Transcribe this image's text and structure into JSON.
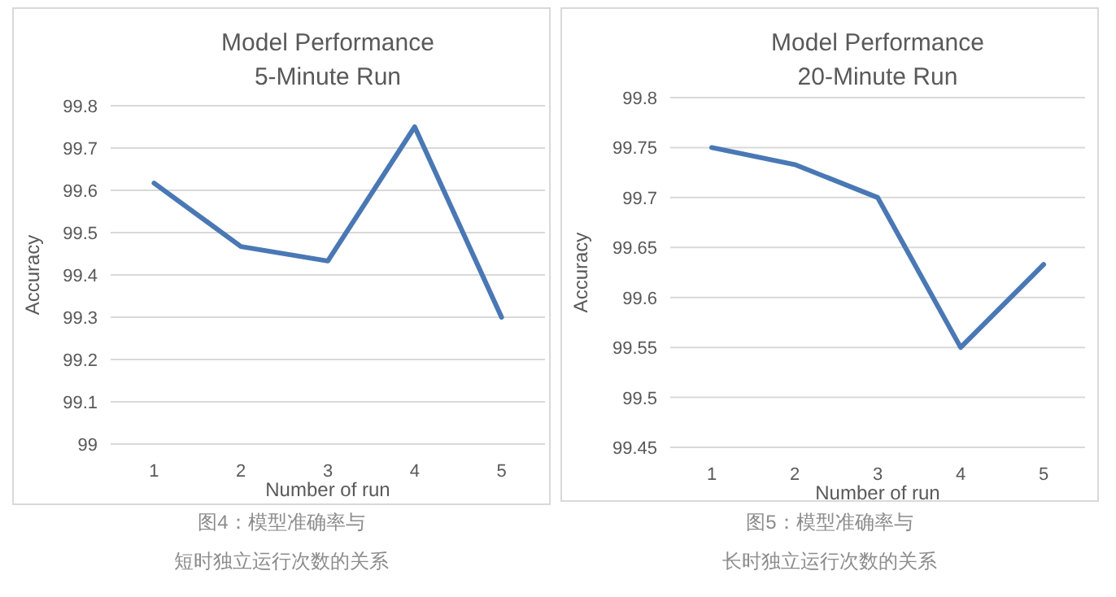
{
  "chart_data": [
    {
      "type": "line",
      "title": "Model Performance",
      "subtitle": "5-Minute Run",
      "xlabel": "Number of run",
      "ylabel": "Accuracy",
      "categories": [
        "1",
        "2",
        "3",
        "4",
        "5"
      ],
      "series": [
        {
          "color": "#4a78b4",
          "values": [
            99.617,
            99.467,
            99.433,
            99.75,
            99.3
          ]
        }
      ],
      "ylim": [
        99,
        99.8
      ],
      "yticks": [
        99,
        99.1,
        99.2,
        99.3,
        99.4,
        99.5,
        99.6,
        99.7,
        99.8
      ],
      "grid": "y",
      "marker": "none",
      "line_style": "solid",
      "annotations": [
        "图4：模型准确率与",
        "短时独立运行次数的关系"
      ]
    },
    {
      "type": "line",
      "title": "Model Performance",
      "subtitle": "20-Minute Run",
      "xlabel": "Number of run",
      "ylabel": "Accuracy",
      "categories": [
        "1",
        "2",
        "3",
        "4",
        "5"
      ],
      "series": [
        {
          "color": "#4a78b4",
          "values": [
            99.75,
            99.733,
            99.7,
            99.55,
            99.633
          ]
        }
      ],
      "ylim": [
        99.45,
        99.8
      ],
      "yticks": [
        99.45,
        99.5,
        99.55,
        99.6,
        99.65,
        99.7,
        99.75,
        99.8
      ],
      "grid": "y",
      "marker": "none",
      "line_style": "solid",
      "annotations": [
        "图5：模型准确率与",
        "长时独立运行次数的关系"
      ]
    }
  ]
}
